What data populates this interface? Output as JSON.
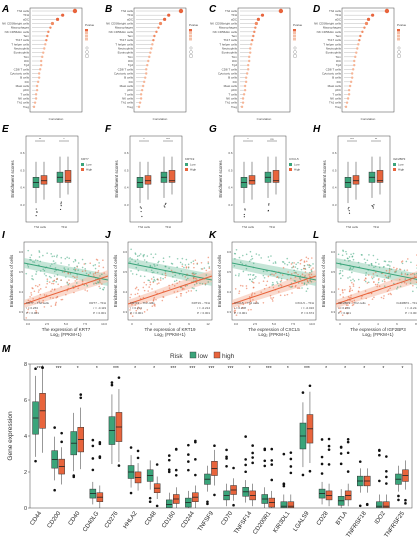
{
  "panel_labels": [
    "A",
    "B",
    "C",
    "D",
    "E",
    "F",
    "G",
    "H",
    "I",
    "J",
    "K",
    "L",
    "M"
  ],
  "lollipop": {
    "cells": [
      "Th2 cells",
      "TFH",
      "aDC",
      "NK CD56bright cells",
      "Macrophages",
      "NK CD56dim cells",
      "Tem",
      "Th17 cells",
      "T helper cells",
      "Neutrophils",
      "Eosinophils",
      "Tcm",
      "iDC",
      "Tgd",
      "CD8 T cells",
      "Cytotoxic cells",
      "B cells",
      "DC",
      "Mast cells",
      "pDC",
      "T cells",
      "NK cells",
      "Th1 cells",
      "Treg"
    ],
    "xlabel": "Correlation",
    "legend_title": "Pvalue",
    "panels": [
      {
        "values": [
          0.42,
          0.3,
          0.25,
          0.2,
          0.18,
          0.16,
          0.15,
          0.14,
          0.13,
          0.12,
          0.11,
          0.1,
          0.09,
          0.09,
          0.08,
          0.07,
          0.07,
          0.06,
          0.05,
          0.05,
          0.04,
          0.04,
          0.03,
          0.02
        ]
      },
      {
        "values": [
          0.44,
          0.32,
          0.28,
          0.24,
          0.22,
          0.2,
          0.18,
          0.17,
          0.16,
          0.15,
          0.14,
          0.13,
          0.12,
          0.11,
          0.1,
          0.1,
          0.09,
          0.08,
          0.07,
          0.06,
          0.05,
          0.05,
          0.04,
          0.03
        ]
      },
      {
        "values": [
          0.4,
          0.22,
          0.18,
          0.16,
          0.15,
          0.14,
          0.13,
          0.12,
          0.11,
          0.1,
          0.1,
          0.09,
          0.09,
          0.08,
          0.08,
          0.07,
          0.06,
          0.06,
          0.05,
          0.05,
          0.04,
          0.03,
          0.03,
          0.02
        ]
      },
      {
        "values": [
          0.42,
          0.28,
          0.24,
          0.22,
          0.2,
          0.18,
          0.16,
          0.15,
          0.14,
          0.13,
          0.12,
          0.11,
          0.1,
          0.1,
          0.09,
          0.08,
          0.08,
          0.07,
          0.06,
          0.05,
          0.05,
          0.04,
          0.03,
          0.02
        ]
      }
    ]
  },
  "boxplots": {
    "ylabel": "Enrichment scores",
    "categories": [
      "Th2 cells",
      "TFH"
    ],
    "panels": [
      {
        "gene": "KRT7",
        "sig": [
          "**",
          "*"
        ]
      },
      {
        "gene": "KRT19",
        "sig": [
          "*",
          "***"
        ]
      },
      {
        "gene": "CXCL5",
        "sig": [
          "*",
          "ns"
        ]
      },
      {
        "gene": "IGF2BP3",
        "sig": [
          "***",
          "**"
        ]
      }
    ],
    "levels": [
      "Low",
      "High"
    ]
  },
  "scatter": {
    "ylabel": "Enrichment scores of cells",
    "xlabel_prefix": "The expression of",
    "xlabel_unit": "Log₂ (FPKM+1)",
    "panels": [
      {
        "gene": "KRT7",
        "green_label": "KRT7 – TFH",
        "orange_label": "KRT7 – Th2 cells",
        "r_green": "r = -0.119",
        "p_green": "P = 0.001",
        "r_orange": "r = 0.263",
        "p_orange": "P < 0.001",
        "xticks": [
          "0.0",
          "2.5",
          "5.0",
          "7.5",
          "10.0"
        ]
      },
      {
        "gene": "KRT19",
        "green_label": "KRT19 – TFH",
        "orange_label": "KRT19 – Th2 cells",
        "r_green": "r = -0.214",
        "p_green": "P < 0.001",
        "r_orange": "r = 0.213",
        "p_orange": "P < 0.001",
        "xticks": [
          "0",
          "3",
          "6",
          "9",
          "12"
        ]
      },
      {
        "gene": "CXCL5",
        "green_label": "CXCL5 – TFH",
        "orange_label": "CXCL5 – Th2 cells",
        "r_green": "r = -0.016",
        "p_green": "P = 0.674",
        "r_orange": "r = 0.208",
        "p_orange": "P < 0.001",
        "xticks": [
          "0.0",
          "2.5",
          "5.0",
          "7.5",
          "10.0"
        ]
      },
      {
        "gene": "IGF2BP3",
        "green_label": "IGF2BP3 – TFH",
        "orange_label": "IGF2BP3 – Th2 cells",
        "r_green": "r = -0.214",
        "p_green": "P < 0.001",
        "r_orange": "r = 0.269",
        "p_orange": "P < 0.001",
        "xticks": [
          "0",
          "2",
          "4",
          "6",
          "8"
        ]
      }
    ]
  },
  "chart_data": {
    "type": "box",
    "title": "",
    "legend_title": "Risk",
    "legend": [
      "low",
      "high"
    ],
    "ylabel": "Gene expression",
    "ylim": [
      0,
      8
    ],
    "yticks": [
      0,
      2,
      4,
      6,
      8
    ],
    "categories": [
      "CD44",
      "CD200",
      "CD40",
      "CD40LG",
      "CD276",
      "HHLA2",
      "CD48",
      "CD160",
      "CD244",
      "TNFSF9",
      "CD70",
      "TNFSF14",
      "CD200R1",
      "KIR3DL1",
      "LGALS9",
      "CD28",
      "BTLA",
      "TNFRSF18",
      "IDO2",
      "TNFRSF25"
    ],
    "significance": [
      "***",
      "***",
      "*",
      "*",
      "***",
      "*",
      "*",
      "***",
      "***",
      "***",
      "***",
      "*",
      "***",
      "*",
      "***",
      "*",
      "*",
      "*",
      "*",
      "*"
    ],
    "series": [
      {
        "name": "low",
        "medians": [
          5.0,
          2.7,
          3.6,
          0.8,
          4.3,
          2.0,
          1.8,
          0.2,
          0.3,
          1.6,
          0.7,
          0.9,
          0.5,
          0.1,
          4.0,
          0.8,
          0.4,
          1.5,
          0.1,
          1.6
        ]
      },
      {
        "name": "high",
        "medians": [
          5.4,
          2.3,
          3.8,
          0.6,
          4.5,
          1.7,
          1.1,
          0.5,
          0.6,
          2.2,
          1.0,
          0.7,
          0.3,
          0.1,
          4.4,
          0.7,
          0.7,
          1.5,
          0.1,
          1.8
        ]
      }
    ]
  },
  "colors": {
    "green": "#3aa47a",
    "orange": "#e8643c",
    "orange_light": "#f3a17e",
    "green_light": "#9fd3bd"
  }
}
